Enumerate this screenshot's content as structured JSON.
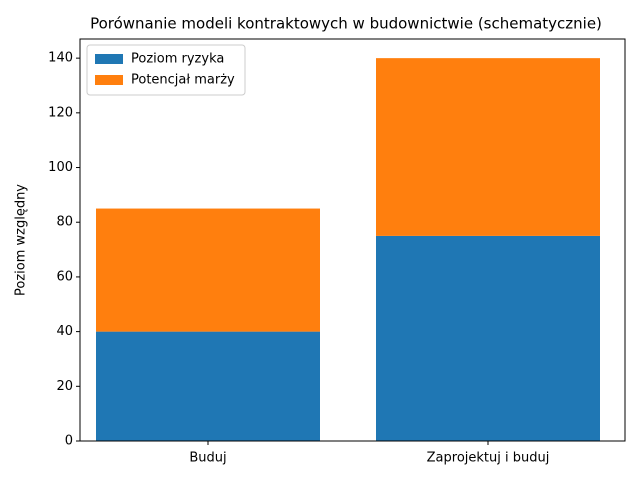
{
  "chart_data": {
    "type": "stacked_bar",
    "title": "Porównanie modeli kontraktowych w budownictwie (schematycznie)",
    "y_label": "Poziom względny",
    "categories": [
      "Buduj",
      "Zaprojektuj i buduj"
    ],
    "series": [
      {
        "name": "Poziom ryzyka",
        "color": "#1f77b4",
        "values": [
          40,
          75
        ]
      },
      {
        "name": "Potencjał marży",
        "color": "#ff7f0e",
        "values": [
          45,
          65
        ]
      }
    ],
    "ylim": [
      0,
      147
    ],
    "yticks": [
      0,
      20,
      40,
      60,
      80,
      100,
      120,
      140
    ],
    "legend": "upper-left"
  }
}
